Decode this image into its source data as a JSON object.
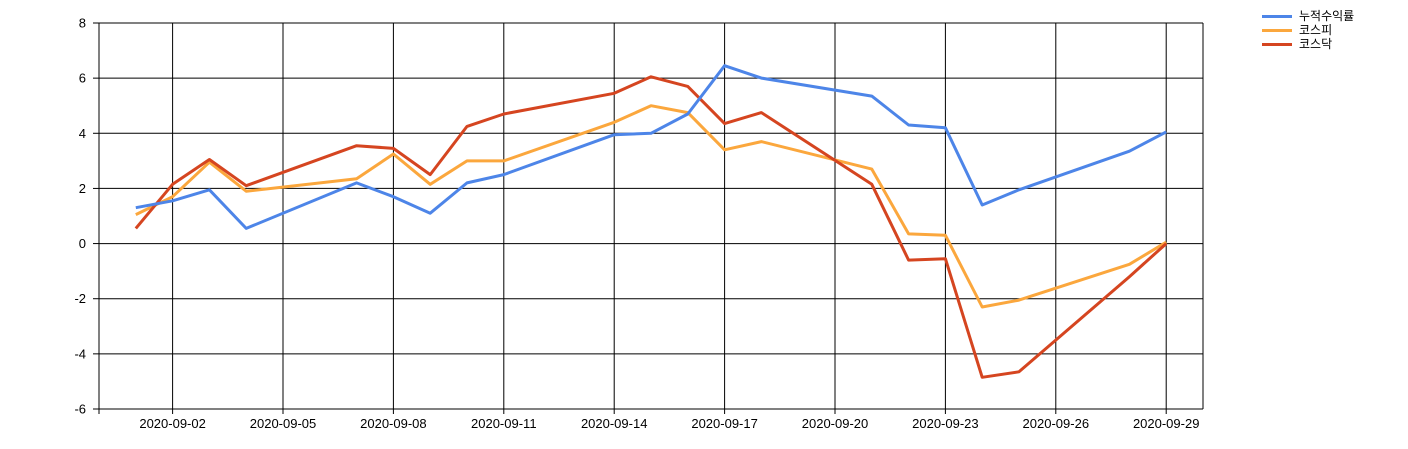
{
  "chart_data": {
    "type": "line",
    "title": "",
    "grid": true,
    "legend_position": "top-right-outside",
    "background_color": "#ffffff",
    "gridline_color": "#000000",
    "label_color": "#000000",
    "x_axis": {
      "kind": "date",
      "domain_note": "axis spans 2020-08-31 to 2020-09-30, gridline every 3 days",
      "tick_days": [
        2,
        5,
        8,
        11,
        14,
        17,
        20,
        23,
        26,
        29
      ],
      "tick_labels": [
        "2020-09-02",
        "2020-09-05",
        "2020-09-08",
        "2020-09-11",
        "2020-09-14",
        "2020-09-17",
        "2020-09-20",
        "2020-09-23",
        "2020-09-26",
        "2020-09-29"
      ]
    },
    "y_axis": {
      "min": -6,
      "max": 8,
      "ticks": [
        8,
        6,
        4,
        2,
        0,
        -2,
        -4,
        -6
      ],
      "tick_labels": [
        "8",
        "6",
        "4",
        "2",
        "0",
        "-2",
        "-4",
        "-6"
      ]
    },
    "x_days": [
      1,
      2,
      3,
      4,
      7,
      8,
      9,
      10,
      11,
      14,
      15,
      16,
      17,
      18,
      21,
      22,
      23,
      24,
      25,
      28,
      29
    ],
    "x_dates": [
      "2020-09-01",
      "2020-09-02",
      "2020-09-03",
      "2020-09-04",
      "2020-09-07",
      "2020-09-08",
      "2020-09-09",
      "2020-09-10",
      "2020-09-11",
      "2020-09-14",
      "2020-09-15",
      "2020-09-16",
      "2020-09-17",
      "2020-09-18",
      "2020-09-21",
      "2020-09-22",
      "2020-09-23",
      "2020-09-24",
      "2020-09-25",
      "2020-09-28",
      "2020-09-29"
    ],
    "series": [
      {
        "name": "누적수익률",
        "color": "#4d85e8",
        "values": [
          1.3,
          1.55,
          1.95,
          0.55,
          2.2,
          1.7,
          1.1,
          2.2,
          2.5,
          3.95,
          4.0,
          4.7,
          6.45,
          6.0,
          5.35,
          4.3,
          4.2,
          1.4,
          1.95,
          3.35,
          4.05
        ]
      },
      {
        "name": "코스피",
        "color": "#fba73d",
        "values": [
          1.05,
          1.7,
          2.95,
          1.9,
          2.35,
          3.25,
          2.15,
          3.0,
          3.0,
          4.4,
          5.0,
          4.75,
          3.4,
          3.7,
          2.7,
          0.35,
          0.3,
          -2.3,
          -2.05,
          -0.75,
          0.05
        ]
      },
      {
        "name": "코스닥",
        "color": "#d54520",
        "values": [
          0.55,
          2.15,
          3.05,
          2.1,
          3.55,
          3.45,
          2.5,
          4.25,
          4.7,
          5.45,
          6.05,
          5.7,
          4.35,
          4.75,
          2.15,
          -0.6,
          -0.55,
          -4.85,
          -4.65,
          -1.2,
          0.0
        ]
      }
    ]
  }
}
